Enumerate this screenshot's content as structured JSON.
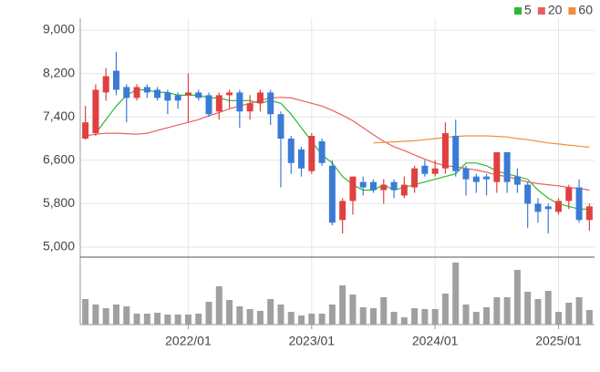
{
  "chart_data": {
    "type": "candlestick",
    "categories": [
      null,
      null,
      null,
      null,
      null,
      null,
      null,
      null,
      null,
      null,
      "2022/01",
      null,
      null,
      null,
      null,
      null,
      null,
      null,
      null,
      null,
      null,
      null,
      "2023/01",
      null,
      null,
      null,
      null,
      null,
      null,
      null,
      null,
      null,
      null,
      null,
      "2024/01",
      null,
      null,
      null,
      null,
      null,
      null,
      null,
      null,
      null,
      null,
      null,
      "2025/01",
      null,
      null,
      null
    ],
    "open": [
      7000,
      7100,
      7850,
      8250,
      7950,
      7750,
      7950,
      7900,
      7850,
      7800,
      7800,
      7850,
      7800,
      7500,
      7800,
      7850,
      7500,
      7650,
      7850,
      7450,
      7000,
      6800,
      6400,
      6950,
      6500,
      5500,
      5850,
      6200,
      6200,
      6050,
      6200,
      5950,
      6100,
      6500,
      6350,
      6450,
      7050,
      6450,
      6300,
      6300,
      6200,
      6750,
      6300,
      6150,
      5800,
      5750,
      5650,
      5850,
      6100,
      5500
    ],
    "high": [
      7600,
      8000,
      8300,
      8600,
      8000,
      8000,
      8000,
      7950,
      7900,
      7850,
      8200,
      7900,
      7850,
      7850,
      7900,
      7900,
      7800,
      7900,
      7900,
      7500,
      7050,
      6850,
      7100,
      7000,
      6600,
      5900,
      6300,
      6300,
      6250,
      6250,
      6250,
      6300,
      6500,
      6600,
      6600,
      7300,
      7350,
      6500,
      6350,
      6350,
      6750,
      6750,
      6450,
      6200,
      5900,
      5800,
      5900,
      6150,
      6250,
      5800
    ],
    "low": [
      6980,
      7050,
      7700,
      7800,
      7300,
      7700,
      7750,
      7700,
      7450,
      7550,
      7300,
      7700,
      7400,
      7350,
      7550,
      7200,
      7350,
      7500,
      7250,
      6100,
      6350,
      6300,
      6350,
      6500,
      5400,
      5250,
      5600,
      5950,
      6000,
      5800,
      5900,
      5900,
      6000,
      6300,
      6300,
      6350,
      6300,
      5950,
      6000,
      5950,
      6000,
      6000,
      6000,
      5350,
      5450,
      5250,
      5600,
      5700,
      5450,
      5300
    ],
    "close": [
      7300,
      7900,
      8150,
      7900,
      7750,
      7950,
      7850,
      7750,
      7700,
      7700,
      7850,
      7750,
      7450,
      7800,
      7850,
      7500,
      7650,
      7850,
      7450,
      7000,
      6550,
      6450,
      7050,
      6550,
      5450,
      5850,
      6300,
      6100,
      6050,
      6150,
      6050,
      6150,
      6450,
      6350,
      6450,
      7100,
      6400,
      6250,
      6200,
      6250,
      6750,
      6200,
      6150,
      5800,
      5650,
      5700,
      5850,
      6100,
      5500,
      5750
    ],
    "up_color": "#e04040",
    "down_color": "#3a7bd5",
    "ylim": [
      5000,
      9000
    ],
    "yticks": [
      {
        "value": 5000,
        "label": "5,000"
      },
      {
        "value": 5800,
        "label": "5,800"
      },
      {
        "value": 6600,
        "label": "6,600"
      },
      {
        "value": 7400,
        "label": "7,400"
      },
      {
        "value": 8200,
        "label": "8,200"
      },
      {
        "value": 9000,
        "label": "9,000"
      }
    ],
    "grid": true,
    "legend": "top-right",
    "series": [
      {
        "name": "5",
        "color": "#2db82d",
        "values": [
          null,
          7100,
          7350,
          7600,
          7800,
          7900,
          7900,
          7850,
          7850,
          7800,
          7800,
          7800,
          7750,
          7750,
          7700,
          7700,
          7700,
          7650,
          7700,
          7650,
          7450,
          7200,
          6950,
          6700,
          6550,
          6300,
          6150,
          6050,
          6050,
          6150,
          6050,
          6100,
          6150,
          6200,
          6250,
          6300,
          6350,
          6550,
          6550,
          6500,
          6400,
          6350,
          6300,
          6250,
          6050,
          5900,
          5800,
          5750,
          5700,
          5700
        ]
      },
      {
        "name": "20",
        "color": "#e86060",
        "values": [
          7050,
          7080,
          7100,
          7100,
          7090,
          7080,
          7100,
          7150,
          7200,
          7250,
          7300,
          7350,
          7420,
          7480,
          7550,
          7600,
          7650,
          7700,
          7750,
          7760,
          7750,
          7700,
          7650,
          7600,
          7520,
          7430,
          7330,
          7200,
          7070,
          6950,
          6850,
          6780,
          6700,
          6620,
          6550,
          6500,
          6480,
          6450,
          6420,
          6380,
          6330,
          6300,
          6250,
          6200,
          6170,
          6150,
          6130,
          6100,
          6080,
          6050
        ]
      },
      {
        "name": "60",
        "color": "#f0903a",
        "values": [
          null,
          null,
          null,
          null,
          null,
          null,
          null,
          null,
          null,
          null,
          null,
          null,
          null,
          null,
          null,
          null,
          null,
          null,
          null,
          null,
          null,
          null,
          null,
          null,
          null,
          null,
          null,
          null,
          6920,
          6930,
          6940,
          6950,
          6960,
          6980,
          7000,
          7020,
          7040,
          7050,
          7050,
          7050,
          7040,
          7030,
          7000,
          6980,
          6950,
          6920,
          6900,
          6880,
          6860,
          6840
        ]
      }
    ],
    "volume": {
      "color": "#a0a0a0",
      "values": [
        28,
        22,
        18,
        22,
        20,
        12,
        12,
        13,
        11,
        11,
        11,
        12,
        25,
        42,
        27,
        20,
        17,
        15,
        28,
        22,
        14,
        10,
        12,
        12,
        22,
        43,
        33,
        19,
        18,
        30,
        14,
        8,
        18,
        17,
        17,
        34,
        68,
        22,
        14,
        19,
        30,
        30,
        60,
        36,
        28,
        37,
        14,
        24,
        30,
        16
      ]
    }
  }
}
